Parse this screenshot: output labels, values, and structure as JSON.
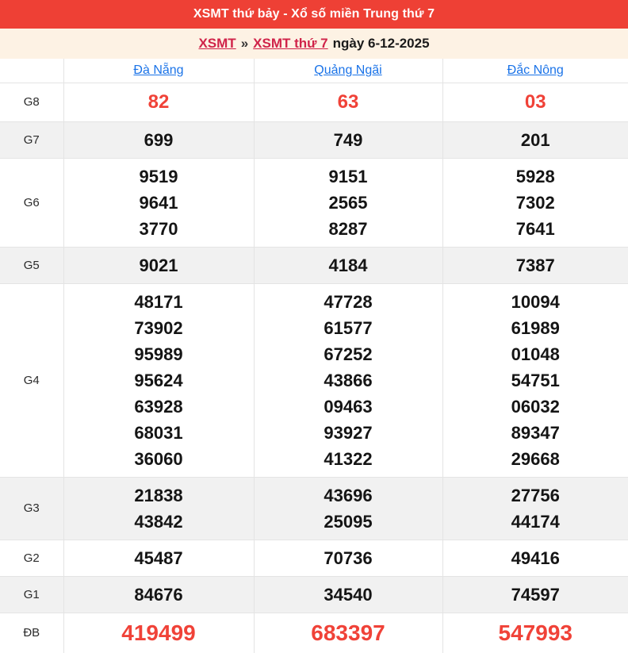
{
  "titlebar": {
    "title": "XSMT thứ bảy - Xổ số miền Trung thứ 7"
  },
  "breadcrumb": {
    "link_xsmt": "XSMT",
    "separator": "»",
    "link_xsmt_thu7": "XSMT thứ 7",
    "date_text": "ngày 6-12-2025"
  },
  "table": {
    "columns": [
      "Đà Nẵng",
      "Quảng Ngãi",
      "Đắc Nông"
    ],
    "rows": [
      {
        "label": "G8",
        "variant": "highlight",
        "cells": [
          [
            "82"
          ],
          [
            "63"
          ],
          [
            "03"
          ]
        ]
      },
      {
        "label": "G7",
        "variant": "normal",
        "cells": [
          [
            "699"
          ],
          [
            "749"
          ],
          [
            "201"
          ]
        ]
      },
      {
        "label": "G6",
        "variant": "normal",
        "cells": [
          [
            "9519",
            "9641",
            "3770"
          ],
          [
            "9151",
            "2565",
            "8287"
          ],
          [
            "5928",
            "7302",
            "7641"
          ]
        ]
      },
      {
        "label": "G5",
        "variant": "normal",
        "cells": [
          [
            "9021"
          ],
          [
            "4184"
          ],
          [
            "7387"
          ]
        ]
      },
      {
        "label": "G4",
        "variant": "normal",
        "cells": [
          [
            "48171",
            "73902",
            "95989",
            "95624",
            "63928",
            "68031",
            "36060"
          ],
          [
            "47728",
            "61577",
            "67252",
            "43866",
            "09463",
            "93927",
            "41322"
          ],
          [
            "10094",
            "61989",
            "01048",
            "54751",
            "06032",
            "89347",
            "29668"
          ]
        ]
      },
      {
        "label": "G3",
        "variant": "normal",
        "cells": [
          [
            "21838",
            "43842"
          ],
          [
            "43696",
            "25095"
          ],
          [
            "27756",
            "44174"
          ]
        ]
      },
      {
        "label": "G2",
        "variant": "normal",
        "cells": [
          [
            "45487"
          ],
          [
            "70736"
          ],
          [
            "49416"
          ]
        ]
      },
      {
        "label": "G1",
        "variant": "normal",
        "cells": [
          [
            "84676"
          ],
          [
            "34540"
          ],
          [
            "74597"
          ]
        ]
      },
      {
        "label": "ĐB",
        "variant": "special",
        "cells": [
          [
            "419499"
          ],
          [
            "683397"
          ],
          [
            "547993"
          ]
        ]
      }
    ]
  },
  "colors": {
    "titlebar_bg": "#ee4035",
    "breadcrumb_bg": "#fdf2e4",
    "breadcrumb_link": "#d02349",
    "column_link": "#1a73e8",
    "number_red": "#f04238",
    "number_black": "#151515",
    "stripe_gray": "#f1f1f1",
    "border": "#e4e4e4"
  }
}
